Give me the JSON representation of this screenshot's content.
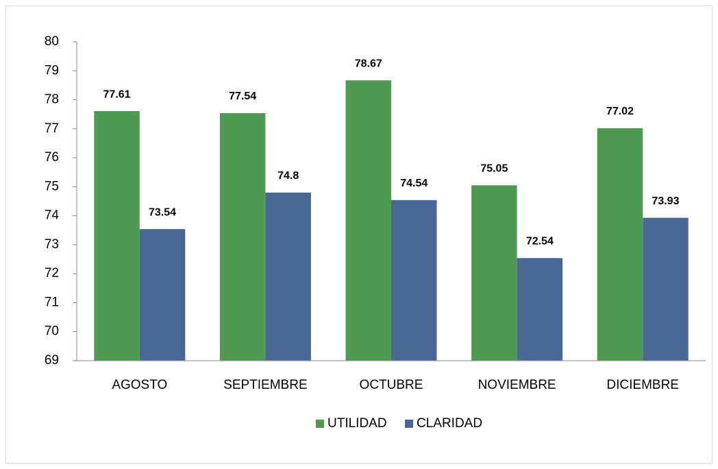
{
  "chart_data": {
    "type": "bar",
    "categories": [
      "AGOSTO",
      "SEPTIEMBRE",
      "OCTUBRE",
      "NOVIEMBRE",
      "DICIEMBRE"
    ],
    "series": [
      {
        "name": "UTILIDAD",
        "color": "#4e9a51",
        "values": [
          77.61,
          77.54,
          78.67,
          75.05,
          77.02
        ]
      },
      {
        "name": "CLARIDAD",
        "color": "#4a6896",
        "values": [
          73.54,
          74.8,
          74.54,
          72.54,
          73.93
        ]
      }
    ],
    "ylim": [
      69,
      80
    ],
    "yticks": [
      69,
      70,
      71,
      72,
      73,
      74,
      75,
      76,
      77,
      78,
      79,
      80
    ],
    "grid": false,
    "legend": "bottom"
  }
}
